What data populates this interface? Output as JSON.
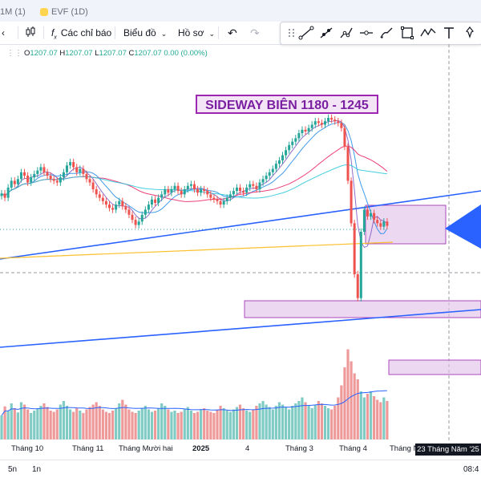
{
  "tabs": [
    {
      "label": "1M (1)"
    },
    {
      "label": "EVF (1D)"
    }
  ],
  "toolbar": {
    "indicators_label": "Các chỉ báo",
    "chart_type_label": "Biểu đồ",
    "profile_label": "Hồ sơ"
  },
  "legend": {
    "open_label": "O",
    "open": "1207.07",
    "high_label": "H",
    "high": "1207.07",
    "low_label": "L",
    "low": "1207.07",
    "close_label": "C",
    "close": "1207.07",
    "change": "0.00 (0.00%)"
  },
  "annotation": {
    "title": "SIDEWAY BIÊN 1180 - 1245"
  },
  "x_axis": {
    "labels": [
      "Tháng 10",
      "Tháng 11",
      "Tháng Mười hai",
      "2025",
      "4",
      "Tháng 3",
      "Tháng 4",
      "Tháng N"
    ],
    "crosshair_label": "23 Tháng Năm '25"
  },
  "bottom": {
    "range_5d": "5n",
    "range_1d": "1n",
    "time": "08:4"
  },
  "colors": {
    "up": "#26a69a",
    "down": "#ef5350",
    "trendline": "#2962ff",
    "zone_fill": "#e1bee7",
    "zone_border": "#ab47bc"
  },
  "chart_data": {
    "type": "candlestick",
    "closes": [
      1245,
      1240,
      1252,
      1260,
      1256,
      1262,
      1270,
      1266,
      1258,
      1264,
      1268,
      1272,
      1276,
      1270,
      1266,
      1262,
      1260,
      1258,
      1264,
      1270,
      1278,
      1282,
      1276,
      1270,
      1274,
      1268,
      1262,
      1258,
      1250,
      1244,
      1240,
      1236,
      1232,
      1228,
      1226,
      1232,
      1236,
      1230,
      1226,
      1220,
      1214,
      1208,
      1212,
      1220,
      1226,
      1232,
      1238,
      1234,
      1240,
      1244,
      1250,
      1246,
      1250,
      1254,
      1248,
      1244,
      1250,
      1254,
      1256,
      1250,
      1246,
      1250,
      1248,
      1244,
      1240,
      1238,
      1236,
      1232,
      1236,
      1240,
      1244,
      1248,
      1252,
      1248,
      1246,
      1252,
      1256,
      1254,
      1250,
      1258,
      1262,
      1266,
      1270,
      1274,
      1280,
      1284,
      1290,
      1296,
      1302,
      1306,
      1310,
      1316,
      1320,
      1318,
      1322,
      1326,
      1330,
      1328,
      1326,
      1330,
      1334,
      1332,
      1330,
      1328,
      1322,
      1300,
      1260,
      1210,
      1150,
      1122,
      1200,
      1226,
      1218,
      1222,
      1214,
      1210,
      1206,
      1212,
      1207
    ],
    "volumes": [
      40,
      55,
      48,
      60,
      52,
      45,
      62,
      58,
      50,
      44,
      48,
      52,
      56,
      60,
      54,
      48,
      46,
      50,
      58,
      64,
      56,
      50,
      46,
      52,
      48,
      44,
      50,
      54,
      58,
      62,
      56,
      50,
      46,
      44,
      48,
      52,
      60,
      66,
      58,
      50,
      46,
      44,
      48,
      52,
      56,
      50,
      46,
      48,
      52,
      60,
      56,
      50,
      46,
      48,
      44,
      46,
      50,
      54,
      48,
      44,
      46,
      50,
      52,
      48,
      46,
      44,
      50,
      56,
      52,
      48,
      46,
      50,
      54,
      58,
      52,
      48,
      46,
      50,
      56,
      60,
      64,
      58,
      54,
      50,
      56,
      62,
      58,
      54,
      50,
      56,
      60,
      64,
      70,
      62,
      56,
      52,
      58,
      64,
      60,
      56,
      52,
      50,
      56,
      70,
      90,
      120,
      150,
      130,
      110,
      100,
      80,
      70,
      76,
      80,
      72,
      66,
      62,
      70,
      64
    ],
    "y_range": [
      1100,
      1350
    ],
    "zones": [
      {
        "from": 1180,
        "to": 1245
      },
      {
        "from": 1120,
        "to": 1130
      },
      {
        "from": 1040,
        "to": 1048
      }
    ]
  }
}
